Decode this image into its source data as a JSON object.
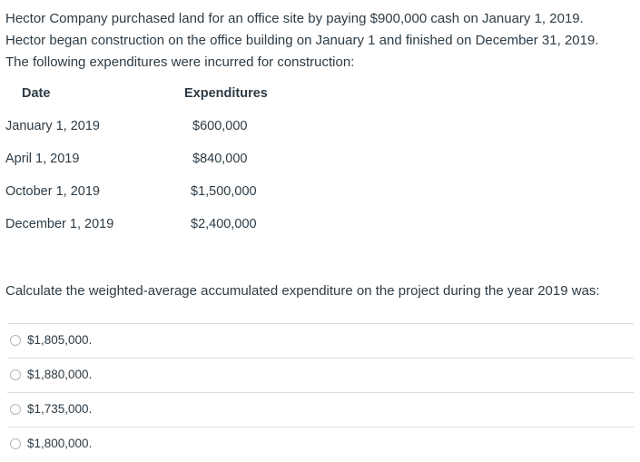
{
  "question": {
    "intro": [
      "Hector Company purchased land for an office site by paying $900,000 cash on January 1, 2019.",
      "Hector began construction on the office building on January 1 and finished on December 31, 2019.",
      "The following expenditures were incurred for construction:"
    ],
    "table": {
      "headers": [
        "Date",
        "Expenditures"
      ],
      "rows": [
        [
          "January 1, 2019",
          "$600,000"
        ],
        [
          "April 1, 2019",
          "$840,000"
        ],
        [
          "October 1, 2019",
          "$1,500,000"
        ],
        [
          "December 1, 2019",
          "$2,400,000"
        ]
      ]
    },
    "prompt": "Calculate the weighted-average accumulated expenditure on the project during the year 2019 was:",
    "options": [
      "$1,805,000.",
      "$1,880,000.",
      "$1,735,000.",
      "$1,800,000."
    ]
  }
}
